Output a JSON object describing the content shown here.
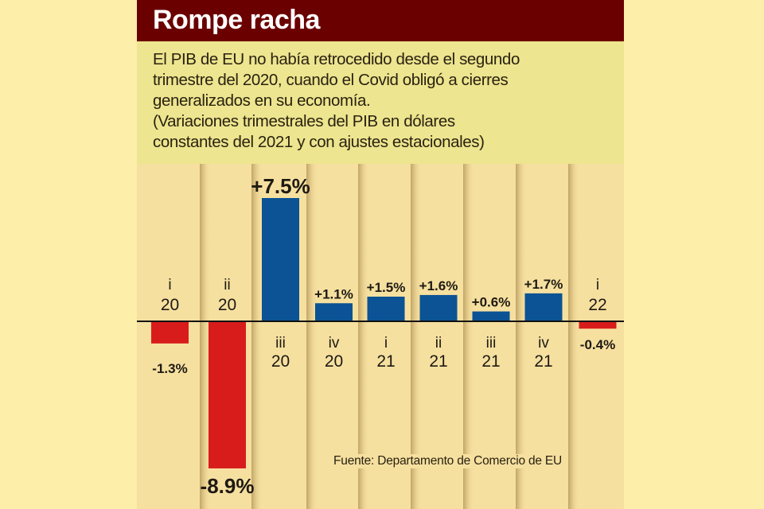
{
  "header": {
    "title": "Rompe racha"
  },
  "subtitle": {
    "lines": [
      "El PIB de EU no había retrocedido desde el segundo",
      "trimestre del 2020, cuando el Covid obligó a cierres",
      "generalizados en su economía.",
      "(Variaciones trimestrales del PIB en dólares",
      "constantes del 2021 y con ajustes estacionales)"
    ]
  },
  "colors": {
    "header_bg": "#6b0000",
    "subtitle_bg": "#ede58f",
    "panel_bg": "#f6e0a0",
    "page_bg": "#fdeeaa",
    "positive": "#0b5394",
    "negative": "#d81c1c"
  },
  "source": "Fuente: Departamento de Comercio de EU",
  "chart_data": {
    "type": "bar",
    "title": "Rompe racha",
    "xlabel": "",
    "ylabel": "",
    "ylim": [
      -8.9,
      7.5
    ],
    "grid": false,
    "legend": "none",
    "categories": [
      {
        "quarter": "i",
        "year": "20"
      },
      {
        "quarter": "ii",
        "year": "20"
      },
      {
        "quarter": "iii",
        "year": "20"
      },
      {
        "quarter": "iv",
        "year": "20"
      },
      {
        "quarter": "i",
        "year": "21"
      },
      {
        "quarter": "ii",
        "year": "21"
      },
      {
        "quarter": "iii",
        "year": "21"
      },
      {
        "quarter": "iv",
        "year": "21"
      },
      {
        "quarter": "i",
        "year": "22"
      }
    ],
    "values": [
      -1.3,
      -8.9,
      7.5,
      1.1,
      1.5,
      1.6,
      0.6,
      1.7,
      -0.4
    ],
    "labels": [
      "-1.3%",
      "-8.9%",
      "+7.5%",
      "+1.1%",
      "+1.5%",
      "+1.6%",
      "+0.6%",
      "+1.7%",
      "-0.4%"
    ]
  }
}
